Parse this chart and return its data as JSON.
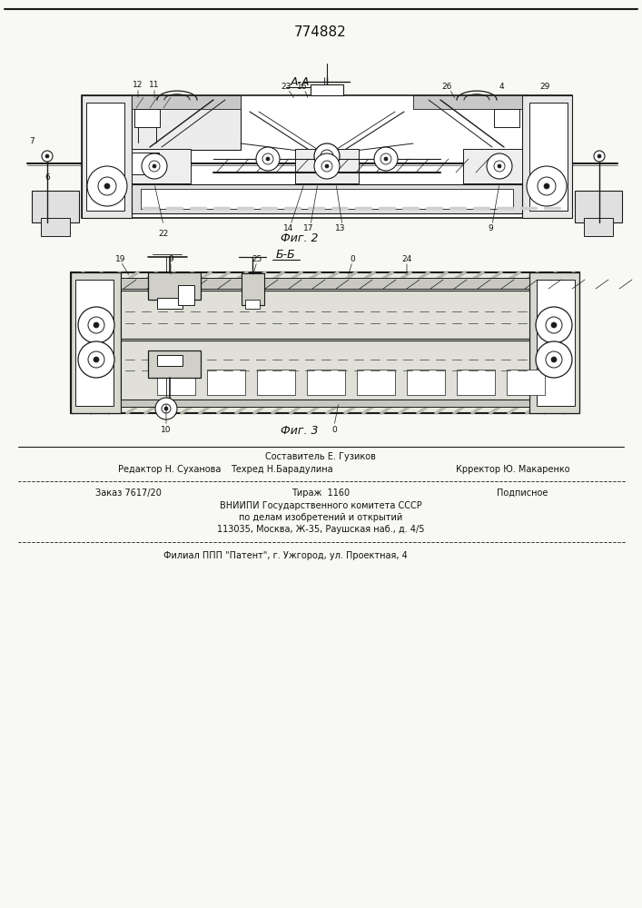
{
  "patent_number": "774882",
  "fig2_label": "А-А",
  "fig2_caption": "Фиг. 2",
  "fig3_label": "Б-Б",
  "fig3_caption": "Фиг. 3",
  "composer_line": "Составитель Е. Гузиков",
  "editor": "Редактор Н. Суханова",
  "techred": "Техред Н.Барадулина",
  "corrector": "Крректор Ю. Макаренко",
  "order": "Заказ 7617/20",
  "tirazh": "Тираж  1160",
  "podpisnoe": "Подписное",
  "vnipi_line1": "ВНИИПИ Государственного комитета СССР",
  "vnipi_line2": "по делам изобретений и открытий",
  "vnipi_line3": "113035, Москва, Ж-35, Раушская наб., д. 4/5",
  "filial_line": "Филиал ППП \"Патент\", г. Ужгород, ул. Проектная, 4",
  "bg_color": "#f8f8f4",
  "line_color": "#1a1a1a",
  "text_color": "#111111"
}
